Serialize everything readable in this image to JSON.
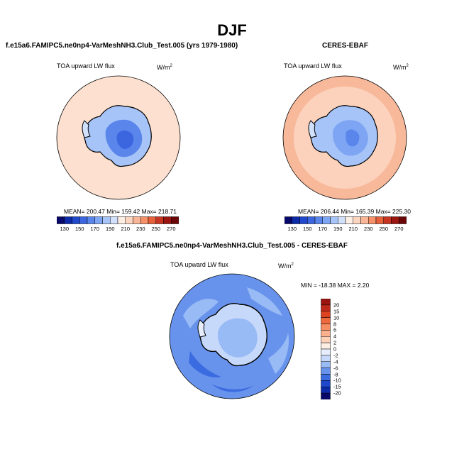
{
  "title": "DJF",
  "colors": {
    "map_outline": "#000000",
    "outline_dark": "#303030"
  },
  "panels": [
    {
      "id": "model",
      "case": "f.e15a6.FAMIPC5.ne0np4-VarMeshNH3.Club_Test.005 (yrs 1979-1980)",
      "variable": "TOA upward LW flux",
      "units_base": "W/m",
      "units_exp": "2",
      "stats": "MEAN= 200.47   Min= 159.42   Max= 218.71",
      "ocean_color": "#fde0cf",
      "mid_band_color": "#fde0cf"
    },
    {
      "id": "obs",
      "case": "CERES-EBAF",
      "variable": "TOA upward LW flux",
      "units_base": "W/m",
      "units_exp": "2",
      "stats": "MEAN= 206.44   Min= 165.39   Max= 225.30",
      "ocean_color": "#f8b99b",
      "mid_band_color": "#fcd2bd"
    }
  ],
  "diff_panel": {
    "case": "f.e15a6.FAMIPC5.ne0np4-VarMeshNH3.Club_Test.005 - CERES-EBAF",
    "variable": "TOA upward LW flux",
    "units_base": "W/m",
    "units_exp": "2",
    "minmax": "MIN = -18.38  MAX =   2.20"
  },
  "chart_data": [
    {
      "type": "heatmap",
      "projection": "south-polar-stereographic",
      "title": "f.e15a6.FAMIPC5.ne0np4-VarMeshNH3.Club_Test.005 (yrs 1979-1980)",
      "variable": "TOA upward LW flux",
      "units": "W/m2",
      "stats": {
        "mean": 200.47,
        "min": 159.42,
        "max": 218.71
      },
      "colorbar": {
        "levels": [
          130,
          140,
          150,
          160,
          170,
          180,
          190,
          200,
          210,
          220,
          230,
          240,
          250,
          260,
          270
        ],
        "labels": [
          "130",
          "150",
          "170",
          "190",
          "210",
          "230",
          "250",
          "270"
        ],
        "colors": [
          "#08086b",
          "#0d2ba8",
          "#1f48cc",
          "#3b66e0",
          "#5a86ec",
          "#7da5f3",
          "#a6c4f8",
          "#d2e1fb",
          "#fdeee4",
          "#fcd5c0",
          "#f9b597",
          "#f59068",
          "#e6603c",
          "#c73522",
          "#9a1510",
          "#6b0606"
        ]
      }
    },
    {
      "type": "heatmap",
      "projection": "south-polar-stereographic",
      "title": "CERES-EBAF",
      "variable": "TOA upward LW flux",
      "units": "W/m2",
      "stats": {
        "mean": 206.44,
        "min": 165.39,
        "max": 225.3
      },
      "colorbar": {
        "levels": [
          130,
          140,
          150,
          160,
          170,
          180,
          190,
          200,
          210,
          220,
          230,
          240,
          250,
          260,
          270
        ],
        "labels": [
          "130",
          "150",
          "170",
          "190",
          "210",
          "230",
          "250",
          "270"
        ],
        "colors": [
          "#08086b",
          "#0d2ba8",
          "#1f48cc",
          "#3b66e0",
          "#5a86ec",
          "#7da5f3",
          "#a6c4f8",
          "#d2e1fb",
          "#fdeee4",
          "#fcd5c0",
          "#f9b597",
          "#f59068",
          "#e6603c",
          "#c73522",
          "#9a1510",
          "#6b0606"
        ]
      }
    },
    {
      "type": "heatmap",
      "projection": "south-polar-stereographic",
      "title": "f.e15a6.FAMIPC5.ne0np4-VarMeshNH3.Club_Test.005 - CERES-EBAF",
      "variable": "TOA upward LW flux",
      "units": "W/m2",
      "stats": {
        "min": -18.38,
        "max": 2.2
      },
      "colorbar": {
        "labels": [
          "20",
          "15",
          "10",
          "8",
          "6",
          "4",
          "2",
          "0",
          "-2",
          "-4",
          "-6",
          "-8",
          "-10",
          "-15",
          "-20"
        ],
        "colors": [
          "#9a1510",
          "#c02a1a",
          "#dc4421",
          "#ee6a3e",
          "#f68e62",
          "#fab08c",
          "#fdd0b8",
          "#fdeee4",
          "#e6eefd",
          "#c6d9fa",
          "#98baf5",
          "#6893ec",
          "#3b6be0",
          "#1f48cc",
          "#0d2ba8",
          "#08086b"
        ]
      }
    }
  ]
}
